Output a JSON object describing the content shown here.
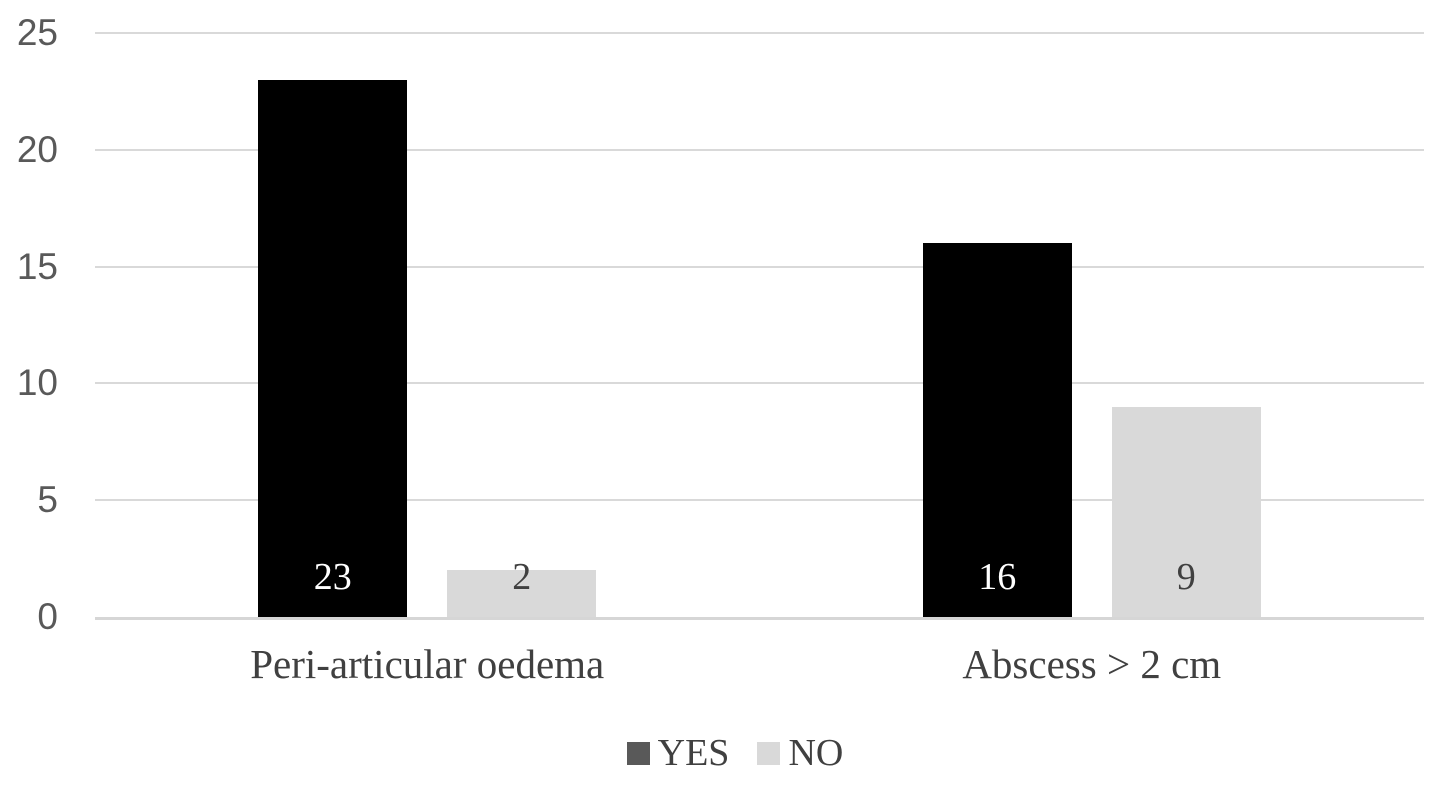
{
  "chart_data": {
    "type": "bar",
    "categories": [
      "Peri-articular oedema",
      "Abscess > 2 cm"
    ],
    "series": [
      {
        "name": "YES",
        "values": [
          23,
          16
        ],
        "bar_color": "#000000",
        "legend_color": "#595959",
        "label_color": "#ffffff"
      },
      {
        "name": "NO",
        "values": [
          2,
          9
        ],
        "bar_color": "#d9d9d9",
        "legend_color": "#d9d9d9",
        "label_color": "#404040"
      }
    ],
    "yticks": [
      0,
      5,
      10,
      15,
      20,
      25
    ],
    "ylim": [
      0,
      25
    ],
    "grid": true,
    "data_labels": true,
    "data_label_position": "inside-base",
    "legend_position": "bottom",
    "title": "",
    "xlabel": "",
    "ylabel": ""
  },
  "colors": {
    "background": "#ffffff",
    "gridline": "#d9d9d9",
    "axis_line": "#d6d6d6",
    "tick_label": "#595959",
    "category_label": "#404040",
    "legend_label": "#404040"
  }
}
